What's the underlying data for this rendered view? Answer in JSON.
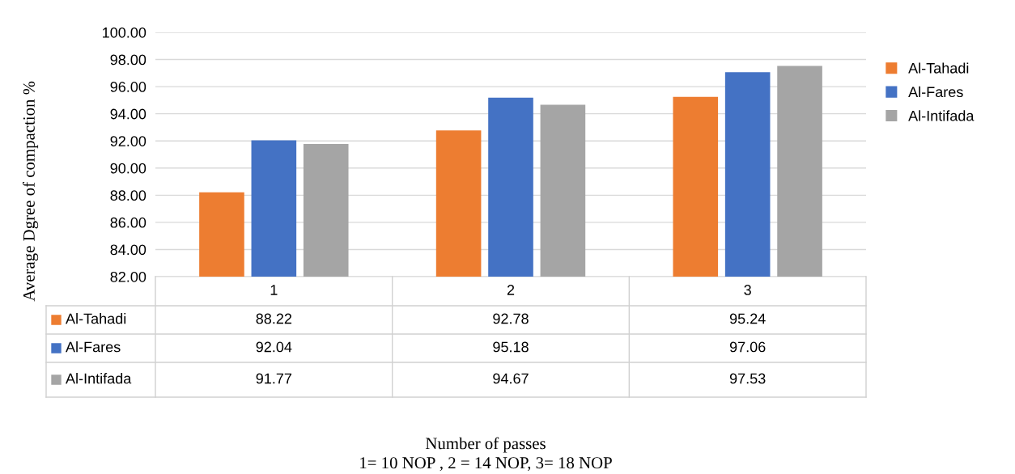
{
  "chart_data": {
    "type": "bar",
    "ylabel": "Average Dgree of compaction %",
    "annotations": [
      "Number of passes",
      "1= 10 NOP , 2 = 14 NOP, 3= 18 NOP"
    ],
    "categories": [
      "1",
      "2",
      "3"
    ],
    "series": [
      {
        "name": "Al-Tahadi",
        "color": "#ed7d31",
        "values": [
          88.22,
          92.78,
          95.24
        ]
      },
      {
        "name": "Al-Fares",
        "color": "#4472c4",
        "values": [
          92.04,
          95.18,
          97.06
        ]
      },
      {
        "name": "Al-Intifada",
        "color": "#a5a5a5",
        "values": [
          91.77,
          94.67,
          97.53
        ]
      }
    ],
    "ylim": [
      82,
      100
    ],
    "yticks": [
      {
        "value": 82,
        "label": "82.00"
      },
      {
        "value": 84,
        "label": "84.00"
      },
      {
        "value": 86,
        "label": "86.00"
      },
      {
        "value": 88,
        "label": "88.00"
      },
      {
        "value": 90,
        "label": "90.00"
      },
      {
        "value": 92,
        "label": "92.00"
      },
      {
        "value": 94,
        "label": "94.00"
      },
      {
        "value": 96,
        "label": "96.00"
      },
      {
        "value": 98,
        "label": "98.00"
      },
      {
        "value": 100,
        "label": "100.00"
      }
    ],
    "grid": "y",
    "legend": "right",
    "data_labels": true
  }
}
